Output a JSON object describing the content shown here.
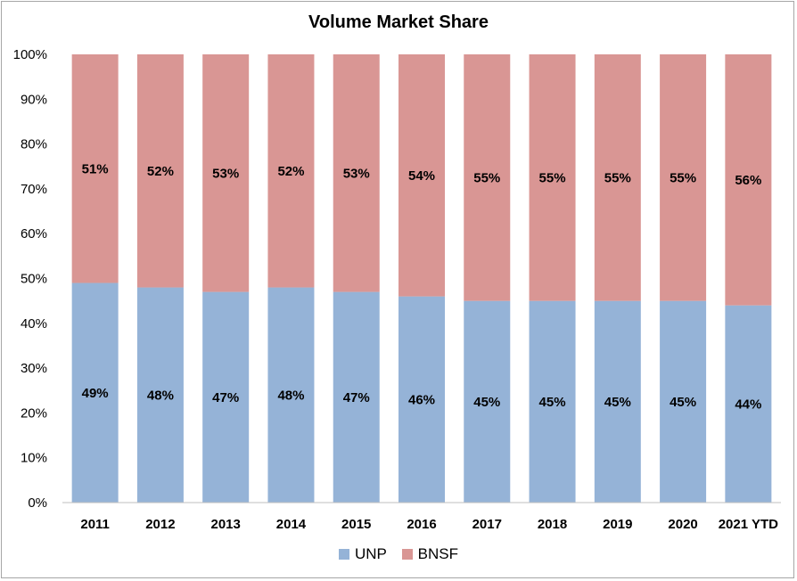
{
  "chart_data": {
    "type": "bar",
    "stacked": true,
    "normalized": true,
    "title": "Volume Market Share",
    "categories": [
      "2011",
      "2012",
      "2013",
      "2014",
      "2015",
      "2016",
      "2017",
      "2018",
      "2019",
      "2020",
      "2021 YTD"
    ],
    "series": [
      {
        "name": "UNP",
        "color": "#95b3d7",
        "values": [
          49,
          48,
          47,
          48,
          47,
          46,
          45,
          45,
          45,
          45,
          44
        ],
        "labels": [
          "49%",
          "48%",
          "47%",
          "48%",
          "47%",
          "46%",
          "45%",
          "45%",
          "45%",
          "45%",
          "44%"
        ]
      },
      {
        "name": "BNSF",
        "color": "#d99694",
        "values": [
          51,
          52,
          53,
          52,
          53,
          54,
          55,
          55,
          55,
          55,
          56
        ],
        "labels": [
          "51%",
          "52%",
          "53%",
          "52%",
          "53%",
          "54%",
          "55%",
          "55%",
          "55%",
          "55%",
          "56%"
        ]
      }
    ],
    "yticks": [
      "0%",
      "10%",
      "20%",
      "30%",
      "40%",
      "50%",
      "60%",
      "70%",
      "80%",
      "90%",
      "100%"
    ],
    "ylim": [
      0,
      100
    ],
    "grid": false,
    "legend_position": "bottom"
  }
}
